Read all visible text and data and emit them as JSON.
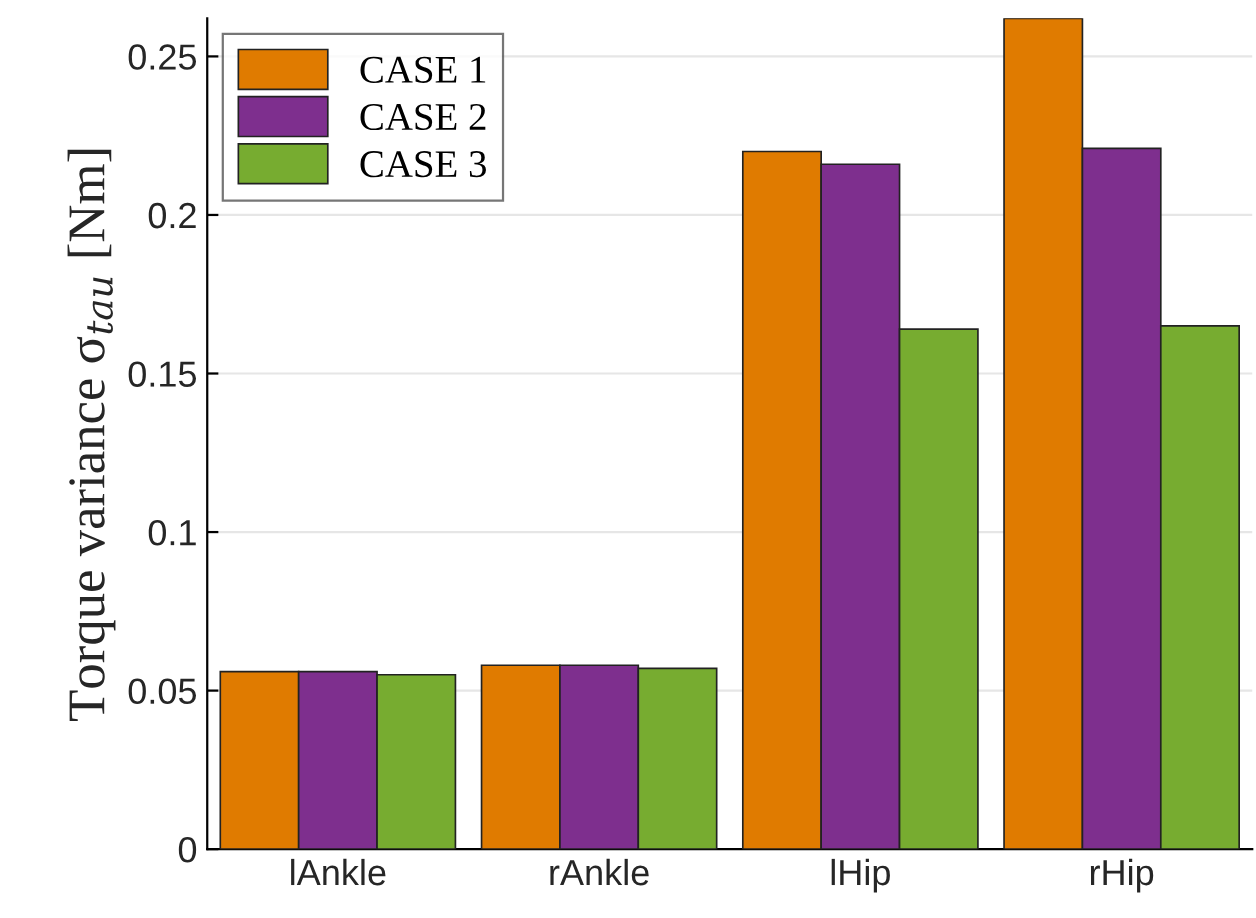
{
  "chart_data": {
    "type": "bar",
    "ylabel": "Torque variance σ$_{tau}$ [Nm]",
    "categories": [
      "lAnkle",
      "rAnkle",
      "lHip",
      "rHip"
    ],
    "series": [
      {
        "name": "CASE 1",
        "color": "#e07b00",
        "values": [
          0.056,
          0.058,
          0.22,
          0.262
        ]
      },
      {
        "name": "CASE 2",
        "color": "#7e2f8e",
        "values": [
          0.056,
          0.058,
          0.216,
          0.221
        ]
      },
      {
        "name": "CASE 3",
        "color": "#77ac30",
        "values": [
          0.055,
          0.057,
          0.164,
          0.165
        ]
      }
    ],
    "ylim": [
      0,
      0.262
    ],
    "yticks": [
      0,
      0.05,
      0.1,
      0.15,
      0.2,
      0.25
    ],
    "grid": "y",
    "legend": "top left"
  }
}
